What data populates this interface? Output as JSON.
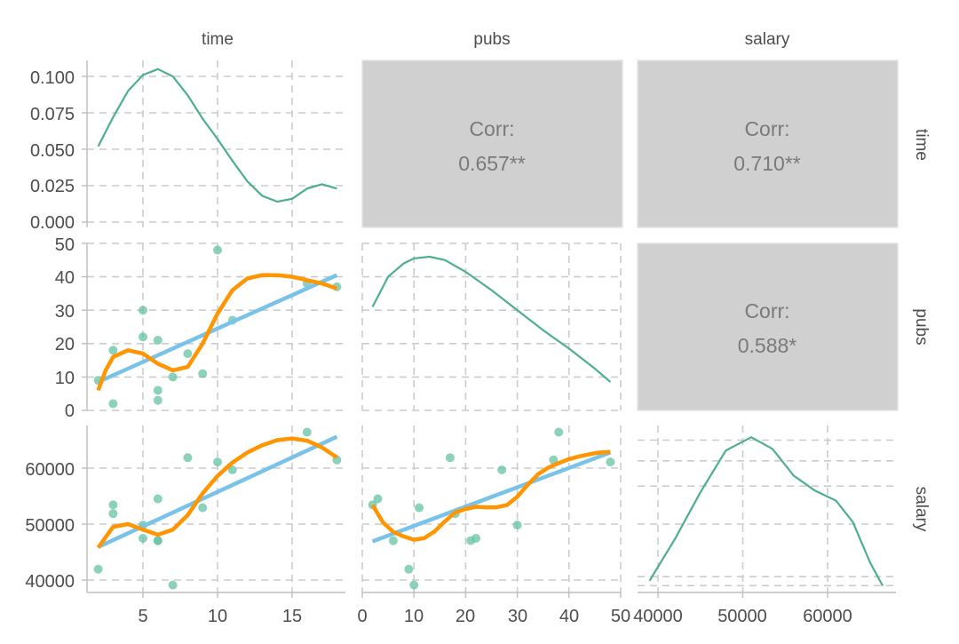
{
  "chart_data": {
    "type": "scatter",
    "variables": [
      "time",
      "pubs",
      "salary"
    ],
    "colors": {
      "density": "#4daf8f",
      "points": "#66c2a5",
      "smooth": "#ff9500",
      "lm": "#7ac3e8",
      "corr_panel": "#d0d0d0"
    },
    "time_ticks": [
      "5",
      "10",
      "15"
    ],
    "pubs_ticks": [
      "0",
      "10",
      "20",
      "30",
      "40",
      "50"
    ],
    "salary_ticks": [
      "40000",
      "50000",
      "60000"
    ],
    "density_ticks": [
      "0.100",
      "0.075",
      "0.050",
      "0.025",
      "0.000"
    ],
    "correlations": [
      {
        "pair": "time-pubs",
        "label": "Corr:",
        "value": "0.657**"
      },
      {
        "pair": "time-salary",
        "label": "Corr:",
        "value": "0.710**"
      },
      {
        "pair": "pubs-salary",
        "label": "Corr:",
        "value": "0.588*"
      }
    ],
    "points": [
      {
        "time": 3,
        "pubs": 18,
        "salary": 51876
      },
      {
        "time": 6,
        "pubs": 3,
        "salary": 54511
      },
      {
        "time": 3,
        "pubs": 2,
        "salary": 53425
      },
      {
        "time": 8,
        "pubs": 17,
        "salary": 61863
      },
      {
        "time": 9,
        "pubs": 11,
        "salary": 52926
      },
      {
        "time": 6,
        "pubs": 6,
        "salary": 47034
      },
      {
        "time": 16,
        "pubs": 38,
        "salary": 66432
      },
      {
        "time": 10,
        "pubs": 48,
        "salary": 61100
      },
      {
        "time": 2,
        "pubs": 9,
        "salary": 41934
      },
      {
        "time": 5,
        "pubs": 22,
        "salary": 47454
      },
      {
        "time": 5,
        "pubs": 30,
        "salary": 49832
      },
      {
        "time": 6,
        "pubs": 21,
        "salary": 47047
      },
      {
        "time": 7,
        "pubs": 10,
        "salary": 39115
      },
      {
        "time": 11,
        "pubs": 27,
        "salary": 59677
      },
      {
        "time": 18,
        "pubs": 37,
        "salary": 61458
      }
    ],
    "density": {
      "time": {
        "x": [
          2,
          3,
          4,
          5,
          6,
          7,
          8,
          9,
          10,
          11,
          12,
          13,
          14,
          15,
          16,
          17,
          18
        ],
        "y": [
          0.052,
          0.072,
          0.09,
          0.101,
          0.105,
          0.1,
          0.087,
          0.071,
          0.057,
          0.042,
          0.028,
          0.018,
          0.014,
          0.016,
          0.023,
          0.026,
          0.023
        ]
      },
      "pubs": {
        "x": [
          2,
          5,
          8,
          10,
          13,
          16,
          20,
          25,
          30,
          35,
          40,
          45,
          48
        ],
        "y": [
          0.62,
          0.8,
          0.88,
          0.91,
          0.92,
          0.9,
          0.83,
          0.72,
          0.6,
          0.48,
          0.37,
          0.25,
          0.17
        ]
      },
      "salary": {
        "x": [
          39000,
          42000,
          45000,
          48000,
          51000,
          53500,
          56000,
          58500,
          61000,
          63000,
          65000,
          66500
        ],
        "y": [
          0.07,
          0.32,
          0.6,
          0.85,
          0.93,
          0.86,
          0.7,
          0.61,
          0.55,
          0.42,
          0.18,
          0.04
        ]
      }
    },
    "smooth": {
      "pubs_vs_time": {
        "x": [
          2,
          2.5,
          3,
          4,
          5,
          6,
          7,
          8,
          9,
          10,
          11,
          12,
          13,
          14,
          15,
          16,
          17,
          18
        ],
        "y": [
          6,
          12,
          16,
          18,
          17,
          14,
          12,
          13,
          20,
          29,
          36,
          39.5,
          40.5,
          40.5,
          40,
          39,
          38,
          36.5
        ]
      },
      "salary_vs_time": {
        "x": [
          2,
          3,
          4,
          5,
          6,
          7,
          8,
          9,
          10,
          11,
          12,
          13,
          14,
          15,
          16,
          17,
          18
        ],
        "y": [
          45800,
          49500,
          50000,
          49000,
          48100,
          49000,
          51600,
          55500,
          58600,
          61000,
          62800,
          64100,
          65000,
          65300,
          64900,
          63700,
          61900
        ]
      },
      "salary_vs_pubs": {
        "x": [
          2,
          4,
          6,
          8,
          10,
          12,
          14,
          16,
          18,
          20,
          22,
          24,
          26,
          28,
          30,
          32,
          34,
          36,
          38,
          40,
          42,
          44,
          46,
          48
        ],
        "y": [
          53400,
          50300,
          48600,
          47800,
          47200,
          47500,
          48700,
          50500,
          52100,
          52700,
          53100,
          53000,
          53000,
          53400,
          54900,
          57000,
          58900,
          60100,
          60900,
          61600,
          62100,
          62500,
          62800,
          62900
        ]
      }
    },
    "lm": {
      "pubs_vs_time": {
        "x": [
          2,
          18
        ],
        "y": [
          8.5,
          40.5
        ]
      },
      "salary_vs_time": {
        "x": [
          2,
          18
        ],
        "y": [
          45900,
          65600
        ]
      },
      "salary_vs_pubs": {
        "x": [
          2,
          48
        ],
        "y": [
          46900,
          62800
        ]
      }
    }
  }
}
